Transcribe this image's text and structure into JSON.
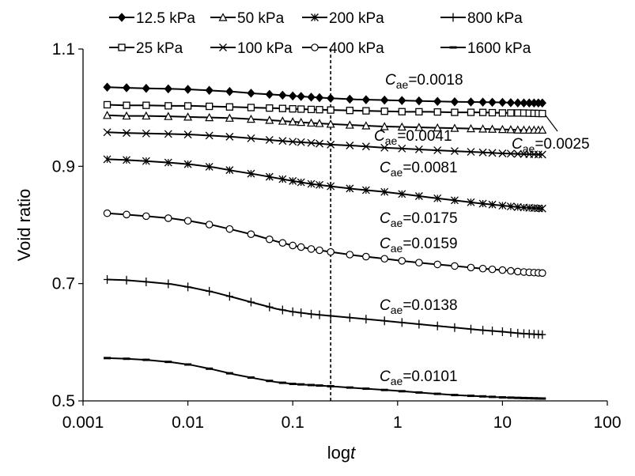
{
  "chart_data": {
    "type": "line",
    "xscale": "log",
    "xlabel": "logt",
    "ylabel": "Void ratio",
    "xlim": [
      0.001,
      100
    ],
    "ylim": [
      0.5,
      1.1
    ],
    "x_ticks": [
      0.001,
      0.01,
      0.1,
      1,
      10,
      100
    ],
    "x_tick_labels": [
      "0.001",
      "0.01",
      "0.1",
      "1",
      "10",
      "100"
    ],
    "y_ticks": [
      0.5,
      0.7,
      0.9,
      1.1
    ],
    "y_tick_labels": [
      "0.5",
      "0.7",
      "0.9",
      "1.1"
    ],
    "grid": false,
    "legend_position": "top",
    "reference_line": {
      "x": 0.23,
      "style": "dashed"
    },
    "x_sample": [
      0.0017,
      0.0025,
      0.004,
      0.007,
      0.011,
      0.018,
      0.028,
      0.045,
      0.07,
      0.1,
      0.15,
      0.23,
      0.4,
      0.7,
      1.2,
      2,
      3.5,
      6,
      10,
      15,
      24
    ],
    "series": [
      {
        "name": "12.5 kPa",
        "marker": "diamond",
        "values": [
          1.035,
          1.034,
          1.033,
          1.032,
          1.031,
          1.029,
          1.027,
          1.024,
          1.022,
          1.02,
          1.018,
          1.016,
          1.014,
          1.013,
          1.012,
          1.011,
          1.01,
          1.0095,
          1.009,
          1.008,
          1.008
        ]
      },
      {
        "name": "25 kPa",
        "marker": "square",
        "values": [
          1.005,
          1.004,
          1.004,
          1.003,
          1.003,
          1.002,
          1.001,
          1.0,
          0.999,
          0.998,
          0.997,
          0.996,
          0.995,
          0.994,
          0.993,
          0.993,
          0.992,
          0.992,
          0.991,
          0.991,
          0.99
        ]
      },
      {
        "name": "50 kPa",
        "marker": "triangle",
        "values": [
          0.987,
          0.986,
          0.986,
          0.985,
          0.984,
          0.983,
          0.982,
          0.98,
          0.978,
          0.976,
          0.974,
          0.972,
          0.97,
          0.968,
          0.967,
          0.966,
          0.965,
          0.964,
          0.963,
          0.962,
          0.962
        ]
      },
      {
        "name": "100 kPa",
        "marker": "x",
        "values": [
          0.958,
          0.957,
          0.956,
          0.955,
          0.954,
          0.952,
          0.95,
          0.947,
          0.944,
          0.942,
          0.94,
          0.937,
          0.935,
          0.932,
          0.93,
          0.928,
          0.926,
          0.924,
          0.922,
          0.921,
          0.92
        ]
      },
      {
        "name": "200 kPa",
        "marker": "asterisk",
        "values": [
          0.912,
          0.911,
          0.909,
          0.906,
          0.903,
          0.898,
          0.892,
          0.886,
          0.88,
          0.875,
          0.87,
          0.866,
          0.861,
          0.857,
          0.852,
          0.847,
          0.842,
          0.837,
          0.833,
          0.83,
          0.828
        ]
      },
      {
        "name": "400 kPa",
        "marker": "circle",
        "values": [
          0.82,
          0.818,
          0.815,
          0.811,
          0.806,
          0.799,
          0.791,
          0.782,
          0.772,
          0.765,
          0.759,
          0.754,
          0.748,
          0.743,
          0.738,
          0.734,
          0.73,
          0.726,
          0.723,
          0.72,
          0.718
        ]
      },
      {
        "name": "800 kPa",
        "marker": "plus",
        "values": [
          0.707,
          0.706,
          0.703,
          0.699,
          0.693,
          0.685,
          0.676,
          0.666,
          0.657,
          0.652,
          0.648,
          0.645,
          0.641,
          0.637,
          0.633,
          0.629,
          0.625,
          0.621,
          0.618,
          0.615,
          0.613
        ]
      },
      {
        "name": "1600 kPa",
        "marker": "dash",
        "values": [
          0.573,
          0.572,
          0.57,
          0.566,
          0.561,
          0.553,
          0.545,
          0.538,
          0.532,
          0.529,
          0.527,
          0.525,
          0.522,
          0.519,
          0.516,
          0.513,
          0.51,
          0.508,
          0.506,
          0.505,
          0.504
        ]
      }
    ],
    "annotations": [
      {
        "symbol": "C",
        "subscript": "ae",
        "text": "=0.0018"
      },
      {
        "symbol": "C",
        "subscript": "ae",
        "text": "=0.0041"
      },
      {
        "symbol": "C",
        "subscript": "ae",
        "text": "=0.0025"
      },
      {
        "symbol": "C",
        "subscript": "ae",
        "text": "=0.0081"
      },
      {
        "symbol": "C",
        "subscript": "ae",
        "text": "=0.0175"
      },
      {
        "symbol": "C",
        "subscript": "ae",
        "text": "=0.0159"
      },
      {
        "symbol": "C",
        "subscript": "ae",
        "text": "=0.0138"
      },
      {
        "symbol": "C",
        "subscript": "ae",
        "text": "=0.0101"
      }
    ]
  }
}
